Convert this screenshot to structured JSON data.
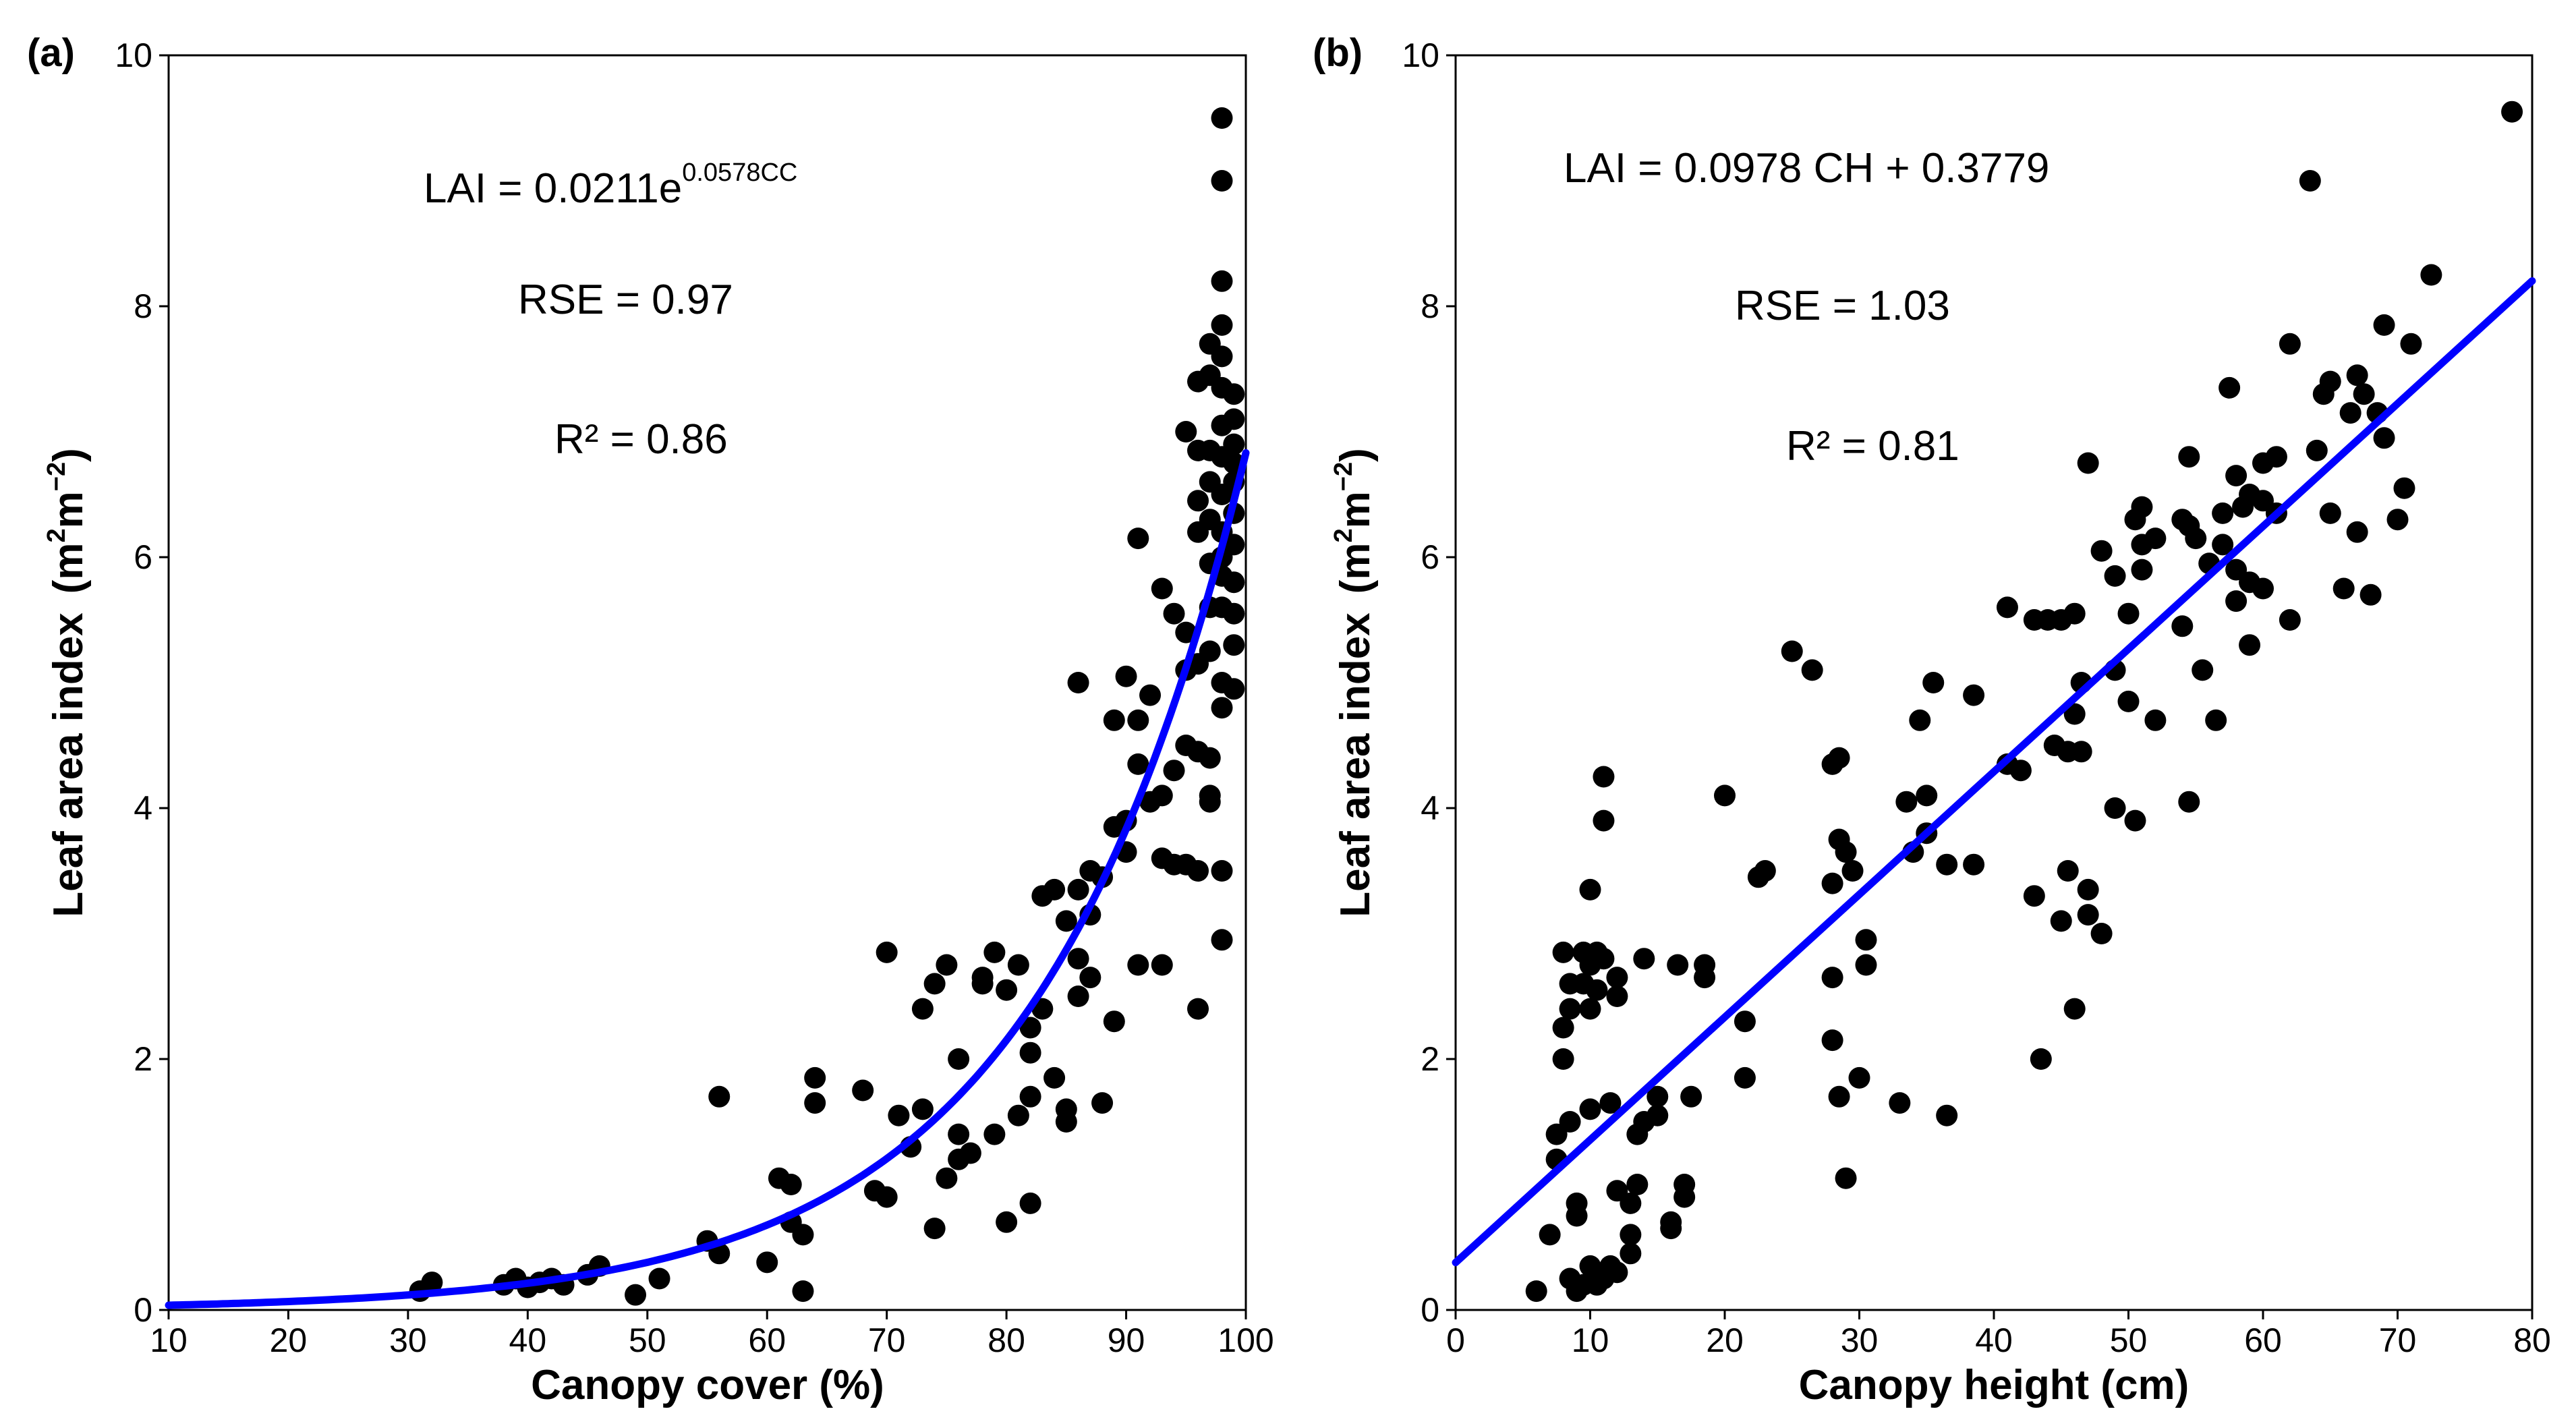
{
  "chart_data": [
    {
      "type": "scatter",
      "panel_label": "(a)",
      "xlabel": "Canopy cover (%)",
      "ylabel_main": "Leaf area index",
      "ylabel_unit": {
        "m": "m",
        "sup1": "2",
        "m2": "m",
        "sup2": "−2"
      },
      "xlim": [
        10,
        100
      ],
      "ylim": [
        0,
        10
      ],
      "xticks": [
        10,
        20,
        30,
        40,
        50,
        60,
        70,
        80,
        90,
        100
      ],
      "yticks": [
        0,
        2,
        4,
        6,
        8,
        10
      ],
      "equation": {
        "base": "LAI = 0.0211e",
        "sup": "0.0578CC"
      },
      "rse": "RSE = 0.97",
      "r2": "R² = 0.86",
      "fit": {
        "type": "exponential",
        "a": 0.0211,
        "b": 0.0578,
        "color": "#0000ff"
      },
      "point_color": "#000000",
      "points": [
        [
          31,
          0.15
        ],
        [
          32,
          0.22
        ],
        [
          38,
          0.2
        ],
        [
          39,
          0.25
        ],
        [
          40,
          0.18
        ],
        [
          41,
          0.22
        ],
        [
          42,
          0.25
        ],
        [
          43,
          0.2
        ],
        [
          45,
          0.28
        ],
        [
          46,
          0.35
        ],
        [
          49,
          0.12
        ],
        [
          51,
          0.25
        ],
        [
          55,
          0.55
        ],
        [
          56,
          0.45
        ],
        [
          56,
          1.7
        ],
        [
          60,
          0.38
        ],
        [
          61,
          1.05
        ],
        [
          62,
          0.7
        ],
        [
          62,
          1.0
        ],
        [
          63,
          0.15
        ],
        [
          63,
          0.6
        ],
        [
          64,
          1.65
        ],
        [
          64,
          1.85
        ],
        [
          68,
          1.75
        ],
        [
          69,
          0.95
        ],
        [
          70,
          0.9
        ],
        [
          70,
          2.85
        ],
        [
          71,
          1.55
        ],
        [
          72,
          1.3
        ],
        [
          73,
          1.6
        ],
        [
          73,
          2.4
        ],
        [
          74,
          2.6
        ],
        [
          74,
          0.65
        ],
        [
          75,
          1.05
        ],
        [
          75,
          2.75
        ],
        [
          76,
          1.2
        ],
        [
          76,
          1.4
        ],
        [
          76,
          2.0
        ],
        [
          77,
          1.25
        ],
        [
          78,
          2.6
        ],
        [
          78,
          2.65
        ],
        [
          79,
          2.85
        ],
        [
          79,
          1.4
        ],
        [
          80,
          0.7
        ],
        [
          80,
          2.55
        ],
        [
          81,
          2.75
        ],
        [
          81,
          1.55
        ],
        [
          82,
          1.7
        ],
        [
          82,
          2.05
        ],
        [
          82,
          2.25
        ],
        [
          82,
          0.85
        ],
        [
          83,
          2.4
        ],
        [
          83,
          3.3
        ],
        [
          84,
          1.85
        ],
        [
          84,
          3.35
        ],
        [
          85,
          3.1
        ],
        [
          85,
          1.5
        ],
        [
          85,
          1.6
        ],
        [
          86,
          3.35
        ],
        [
          86,
          2.8
        ],
        [
          86,
          5.0
        ],
        [
          86,
          2.5
        ],
        [
          87,
          3.5
        ],
        [
          87,
          3.15
        ],
        [
          87,
          2.65
        ],
        [
          88,
          3.45
        ],
        [
          88,
          1.65
        ],
        [
          89,
          2.3
        ],
        [
          89,
          3.85
        ],
        [
          89,
          4.7
        ],
        [
          90,
          3.9
        ],
        [
          90,
          3.65
        ],
        [
          90,
          5.05
        ],
        [
          91,
          4.7
        ],
        [
          91,
          2.75
        ],
        [
          91,
          4.35
        ],
        [
          91,
          6.15
        ],
        [
          92,
          4.9
        ],
        [
          92,
          4.05
        ],
        [
          93,
          2.75
        ],
        [
          93,
          3.6
        ],
        [
          93,
          4.1
        ],
        [
          93,
          5.75
        ],
        [
          94,
          3.55
        ],
        [
          94,
          4.3
        ],
        [
          94,
          5.55
        ],
        [
          95,
          5.1
        ],
        [
          95,
          7.0
        ],
        [
          95,
          3.55
        ],
        [
          95,
          4.5
        ],
        [
          95,
          5.4
        ],
        [
          96,
          3.5
        ],
        [
          96,
          4.45
        ],
        [
          96,
          5.15
        ],
        [
          96,
          6.2
        ],
        [
          96,
          6.45
        ],
        [
          96,
          6.85
        ],
        [
          96,
          7.4
        ],
        [
          96,
          2.4
        ],
        [
          97,
          4.4
        ],
        [
          97,
          4.1
        ],
        [
          97,
          5.25
        ],
        [
          97,
          5.6
        ],
        [
          97,
          5.95
        ],
        [
          97,
          6.3
        ],
        [
          97,
          6.6
        ],
        [
          97,
          6.85
        ],
        [
          97,
          7.7
        ],
        [
          97,
          7.45
        ],
        [
          97,
          4.05
        ],
        [
          98,
          2.95
        ],
        [
          98,
          3.5
        ],
        [
          98,
          4.8
        ],
        [
          98,
          5.0
        ],
        [
          98,
          5.6
        ],
        [
          98,
          5.85
        ],
        [
          98,
          6.0
        ],
        [
          98,
          6.2
        ],
        [
          98,
          6.5
        ],
        [
          98,
          6.8
        ],
        [
          98,
          7.05
        ],
        [
          98,
          7.35
        ],
        [
          98,
          7.6
        ],
        [
          98,
          7.85
        ],
        [
          98,
          8.2
        ],
        [
          98,
          9.0
        ],
        [
          98,
          9.5
        ],
        [
          99,
          5.55
        ],
        [
          99,
          5.8
        ],
        [
          99,
          6.1
        ],
        [
          99,
          6.35
        ],
        [
          99,
          6.6
        ],
        [
          99,
          6.9
        ],
        [
          99,
          7.1
        ],
        [
          99,
          7.3
        ],
        [
          99,
          4.95
        ],
        [
          99,
          5.3
        ],
        [
          99,
          6.75
        ]
      ]
    },
    {
      "type": "scatter",
      "panel_label": "(b)",
      "xlabel": "Canopy height (cm)",
      "ylabel_main": "Leaf area index",
      "ylabel_unit": {
        "m": "m",
        "sup1": "2",
        "m2": "m",
        "sup2": "−2"
      },
      "xlim": [
        0,
        80
      ],
      "ylim": [
        0,
        10
      ],
      "xticks": [
        0,
        10,
        20,
        30,
        40,
        50,
        60,
        70,
        80
      ],
      "yticks": [
        0,
        2,
        4,
        6,
        8,
        10
      ],
      "equation": {
        "base": "LAI =  0.0978 CH + 0.3779",
        "sup": ""
      },
      "rse": "RSE = 1.03",
      "r2": "R² = 0.81",
      "fit": {
        "type": "linear",
        "slope": 0.0978,
        "intercept": 0.3779,
        "color": "#0000ff"
      },
      "point_color": "#000000",
      "points": [
        [
          6,
          0.15
        ],
        [
          7,
          0.6
        ],
        [
          7.5,
          1.2
        ],
        [
          7.5,
          1.4
        ],
        [
          8,
          2.0
        ],
        [
          8,
          2.25
        ],
        [
          8,
          2.85
        ],
        [
          8.5,
          2.4
        ],
        [
          8.5,
          2.6
        ],
        [
          8.5,
          1.5
        ],
        [
          8.5,
          0.25
        ],
        [
          9,
          0.15
        ],
        [
          9,
          0.75
        ],
        [
          9,
          0.85
        ],
        [
          9.5,
          0.2
        ],
        [
          9.5,
          2.85
        ],
        [
          9.5,
          2.6
        ],
        [
          10,
          0.35
        ],
        [
          10,
          1.6
        ],
        [
          10,
          2.4
        ],
        [
          10,
          3.35
        ],
        [
          10,
          2.75
        ],
        [
          10.5,
          0.2
        ],
        [
          10.5,
          2.55
        ],
        [
          10.5,
          2.85
        ],
        [
          11,
          0.25
        ],
        [
          11,
          2.8
        ],
        [
          11,
          3.9
        ],
        [
          11,
          4.25
        ],
        [
          11.5,
          1.65
        ],
        [
          11.5,
          0.35
        ],
        [
          12,
          0.3
        ],
        [
          12,
          0.95
        ],
        [
          12,
          2.65
        ],
        [
          12,
          2.5
        ],
        [
          13,
          0.45
        ],
        [
          13,
          0.85
        ],
        [
          13,
          0.6
        ],
        [
          13.5,
          1.0
        ],
        [
          13.5,
          1.4
        ],
        [
          14,
          1.5
        ],
        [
          14,
          2.8
        ],
        [
          15,
          1.7
        ],
        [
          15,
          1.55
        ],
        [
          16,
          0.7
        ],
        [
          16,
          0.65
        ],
        [
          16.5,
          2.75
        ],
        [
          17,
          0.9
        ],
        [
          17,
          1.0
        ],
        [
          17.5,
          1.7
        ],
        [
          18.5,
          2.65
        ],
        [
          18.5,
          2.75
        ],
        [
          20,
          4.1
        ],
        [
          21.5,
          1.85
        ],
        [
          21.5,
          2.3
        ],
        [
          22.5,
          3.45
        ],
        [
          23,
          3.5
        ],
        [
          25,
          5.25
        ],
        [
          26.5,
          5.1
        ],
        [
          28,
          2.15
        ],
        [
          28,
          3.4
        ],
        [
          28,
          2.65
        ],
        [
          28,
          4.35
        ],
        [
          28.5,
          4.4
        ],
        [
          28.5,
          1.7
        ],
        [
          28.5,
          3.75
        ],
        [
          29,
          1.05
        ],
        [
          29,
          3.65
        ],
        [
          29.5,
          3.5
        ],
        [
          30,
          1.85
        ],
        [
          30.5,
          2.95
        ],
        [
          30.5,
          2.75
        ],
        [
          33,
          1.65
        ],
        [
          33.5,
          4.05
        ],
        [
          34,
          3.65
        ],
        [
          34.5,
          4.7
        ],
        [
          35,
          4.1
        ],
        [
          35,
          3.8
        ],
        [
          35.5,
          5.0
        ],
        [
          36.5,
          3.55
        ],
        [
          36.5,
          1.55
        ],
        [
          38.5,
          3.55
        ],
        [
          38.5,
          4.9
        ],
        [
          41,
          5.6
        ],
        [
          41,
          4.35
        ],
        [
          42,
          4.3
        ],
        [
          43,
          5.5
        ],
        [
          43,
          3.3
        ],
        [
          43.5,
          2.0
        ],
        [
          44,
          5.5
        ],
        [
          44.5,
          4.5
        ],
        [
          45,
          5.5
        ],
        [
          45,
          3.1
        ],
        [
          45.5,
          3.5
        ],
        [
          45.5,
          4.45
        ],
        [
          46,
          5.55
        ],
        [
          46,
          2.4
        ],
        [
          46,
          4.75
        ],
        [
          46.5,
          5.0
        ],
        [
          46.5,
          4.45
        ],
        [
          47,
          3.35
        ],
        [
          47,
          3.15
        ],
        [
          47,
          6.75
        ],
        [
          48,
          3.0
        ],
        [
          48,
          6.05
        ],
        [
          49,
          5.85
        ],
        [
          49,
          4.0
        ],
        [
          49,
          5.1
        ],
        [
          50,
          5.55
        ],
        [
          50,
          4.85
        ],
        [
          50.5,
          6.3
        ],
        [
          50.5,
          3.9
        ],
        [
          51,
          6.1
        ],
        [
          51,
          6.4
        ],
        [
          51,
          5.9
        ],
        [
          52,
          6.15
        ],
        [
          52,
          4.7
        ],
        [
          54,
          6.3
        ],
        [
          54,
          5.45
        ],
        [
          54.5,
          6.25
        ],
        [
          54.5,
          4.05
        ],
        [
          54.5,
          6.8
        ],
        [
          55,
          6.15
        ],
        [
          55.5,
          5.1
        ],
        [
          56,
          5.95
        ],
        [
          56.5,
          4.7
        ],
        [
          57,
          6.1
        ],
        [
          57,
          6.35
        ],
        [
          57.5,
          7.35
        ],
        [
          58,
          6.65
        ],
        [
          58,
          5.65
        ],
        [
          58,
          5.9
        ],
        [
          58.5,
          6.4
        ],
        [
          59,
          5.3
        ],
        [
          59,
          5.8
        ],
        [
          59,
          6.5
        ],
        [
          60,
          6.75
        ],
        [
          60,
          6.45
        ],
        [
          60,
          5.75
        ],
        [
          61,
          6.8
        ],
        [
          61,
          6.35
        ],
        [
          62,
          5.5
        ],
        [
          62,
          7.7
        ],
        [
          63.5,
          9.0
        ],
        [
          64,
          6.85
        ],
        [
          64.5,
          7.3
        ],
        [
          65,
          7.4
        ],
        [
          65,
          6.35
        ],
        [
          66,
          5.75
        ],
        [
          66.5,
          7.15
        ],
        [
          67,
          7.45
        ],
        [
          67,
          6.2
        ],
        [
          67.5,
          7.3
        ],
        [
          68,
          5.7
        ],
        [
          68.5,
          7.15
        ],
        [
          69,
          6.95
        ],
        [
          69,
          7.85
        ],
        [
          70,
          6.3
        ],
        [
          70.5,
          6.55
        ],
        [
          71,
          7.7
        ],
        [
          72.5,
          8.25
        ],
        [
          78.5,
          9.55
        ]
      ]
    }
  ]
}
